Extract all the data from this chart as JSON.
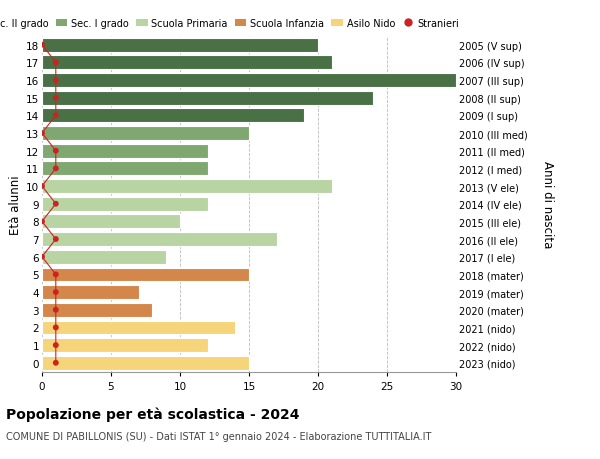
{
  "ages": [
    18,
    17,
    16,
    15,
    14,
    13,
    12,
    11,
    10,
    9,
    8,
    7,
    6,
    5,
    4,
    3,
    2,
    1,
    0
  ],
  "values": [
    20,
    21,
    30,
    24,
    19,
    15,
    12,
    12,
    21,
    12,
    10,
    17,
    9,
    15,
    7,
    8,
    14,
    12,
    15
  ],
  "right_labels": [
    "2005 (V sup)",
    "2006 (IV sup)",
    "2007 (III sup)",
    "2008 (II sup)",
    "2009 (I sup)",
    "2010 (III med)",
    "2011 (II med)",
    "2012 (I med)",
    "2013 (V ele)",
    "2014 (IV ele)",
    "2015 (III ele)",
    "2016 (II ele)",
    "2017 (I ele)",
    "2018 (mater)",
    "2019 (mater)",
    "2020 (mater)",
    "2021 (nido)",
    "2022 (nido)",
    "2023 (nido)"
  ],
  "bar_colors": [
    "#4a7045",
    "#4a7045",
    "#4a7045",
    "#4a7045",
    "#4a7045",
    "#7fa870",
    "#7fa870",
    "#7fa870",
    "#b8d4a3",
    "#b8d4a3",
    "#b8d4a3",
    "#b8d4a3",
    "#b8d4a3",
    "#d4874a",
    "#d4874a",
    "#d4874a",
    "#f5d47a",
    "#f5d47a",
    "#f5d47a"
  ],
  "stranieri_x": [
    0,
    1,
    1,
    1,
    1,
    0,
    1,
    1,
    0,
    1,
    0,
    1,
    0,
    1,
    1,
    1,
    1,
    1,
    1
  ],
  "legend_labels": [
    "Sec. II grado",
    "Sec. I grado",
    "Scuola Primaria",
    "Scuola Infanzia",
    "Asilo Nido",
    "Stranieri"
  ],
  "legend_colors": [
    "#4a7045",
    "#7fa870",
    "#b8d4a3",
    "#d4874a",
    "#f5d47a",
    "#cc2222"
  ],
  "title": "Popolazione per età scolastica - 2024",
  "subtitle": "COMUNE DI PABILLONIS (SU) - Dati ISTAT 1° gennaio 2024 - Elaborazione TUTTITALIA.IT",
  "ylabel": "Età alunni",
  "right_ylabel": "Anni di nascita",
  "xlim": [
    0,
    30
  ],
  "xticks": [
    0,
    5,
    10,
    15,
    20,
    25,
    30
  ],
  "background_color": "#ffffff",
  "grid_color": "#bbbbbb"
}
